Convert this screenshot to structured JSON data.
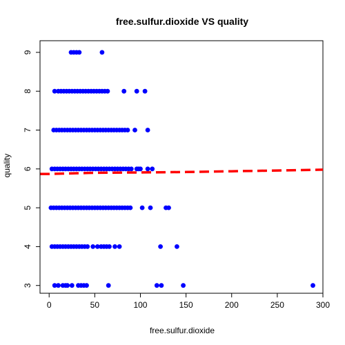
{
  "chart_data": {
    "type": "scatter",
    "title": "free.sulfur.dioxide VS quality",
    "xlabel": "free.sulfur.dioxide",
    "ylabel": "quality",
    "xlim": [
      -10,
      300
    ],
    "ylim": [
      2.8,
      9.3
    ],
    "x_ticks": [
      0,
      50,
      100,
      150,
      200,
      250,
      300
    ],
    "y_ticks": [
      3,
      4,
      5,
      6,
      7,
      8,
      9
    ],
    "point_color": "#0000ff",
    "trend_color": "#ff0000",
    "grid": false,
    "series": [
      {
        "points": [
          [
            24,
            9
          ],
          [
            27,
            9
          ],
          [
            30,
            9
          ],
          [
            33,
            9
          ],
          [
            58,
            9
          ],
          [
            6,
            8
          ],
          [
            10,
            8
          ],
          [
            13,
            8
          ],
          [
            16,
            8
          ],
          [
            19,
            8
          ],
          [
            22,
            8
          ],
          [
            25,
            8
          ],
          [
            28,
            8
          ],
          [
            31,
            8
          ],
          [
            34,
            8
          ],
          [
            37,
            8
          ],
          [
            40,
            8
          ],
          [
            43,
            8
          ],
          [
            46,
            8
          ],
          [
            49,
            8
          ],
          [
            52,
            8
          ],
          [
            55,
            8
          ],
          [
            58,
            8
          ],
          [
            61,
            8
          ],
          [
            64,
            8
          ],
          [
            82,
            8
          ],
          [
            96,
            8
          ],
          [
            105,
            8
          ],
          [
            5,
            7
          ],
          [
            8,
            7
          ],
          [
            11,
            7
          ],
          [
            14,
            7
          ],
          [
            17,
            7
          ],
          [
            20,
            7
          ],
          [
            23,
            7
          ],
          [
            26,
            7
          ],
          [
            29,
            7
          ],
          [
            32,
            7
          ],
          [
            35,
            7
          ],
          [
            38,
            7
          ],
          [
            41,
            7
          ],
          [
            44,
            7
          ],
          [
            47,
            7
          ],
          [
            50,
            7
          ],
          [
            53,
            7
          ],
          [
            56,
            7
          ],
          [
            59,
            7
          ],
          [
            62,
            7
          ],
          [
            65,
            7
          ],
          [
            68,
            7
          ],
          [
            71,
            7
          ],
          [
            74,
            7
          ],
          [
            77,
            7
          ],
          [
            80,
            7
          ],
          [
            83,
            7
          ],
          [
            86,
            7
          ],
          [
            94,
            7
          ],
          [
            108,
            7
          ],
          [
            3,
            6
          ],
          [
            6,
            6
          ],
          [
            9,
            6
          ],
          [
            12,
            6
          ],
          [
            15,
            6
          ],
          [
            18,
            6
          ],
          [
            21,
            6
          ],
          [
            24,
            6
          ],
          [
            27,
            6
          ],
          [
            30,
            6
          ],
          [
            33,
            6
          ],
          [
            36,
            6
          ],
          [
            39,
            6
          ],
          [
            42,
            6
          ],
          [
            45,
            6
          ],
          [
            48,
            6
          ],
          [
            51,
            6
          ],
          [
            54,
            6
          ],
          [
            57,
            6
          ],
          [
            60,
            6
          ],
          [
            63,
            6
          ],
          [
            66,
            6
          ],
          [
            69,
            6
          ],
          [
            72,
            6
          ],
          [
            75,
            6
          ],
          [
            78,
            6
          ],
          [
            81,
            6
          ],
          [
            84,
            6
          ],
          [
            87,
            6
          ],
          [
            90,
            6
          ],
          [
            96,
            6
          ],
          [
            98,
            6
          ],
          [
            100,
            6
          ],
          [
            108,
            6
          ],
          [
            113,
            6
          ],
          [
            2,
            5
          ],
          [
            5,
            5
          ],
          [
            8,
            5
          ],
          [
            11,
            5
          ],
          [
            14,
            5
          ],
          [
            17,
            5
          ],
          [
            20,
            5
          ],
          [
            23,
            5
          ],
          [
            26,
            5
          ],
          [
            29,
            5
          ],
          [
            32,
            5
          ],
          [
            35,
            5
          ],
          [
            38,
            5
          ],
          [
            41,
            5
          ],
          [
            44,
            5
          ],
          [
            47,
            5
          ],
          [
            50,
            5
          ],
          [
            53,
            5
          ],
          [
            56,
            5
          ],
          [
            59,
            5
          ],
          [
            62,
            5
          ],
          [
            65,
            5
          ],
          [
            68,
            5
          ],
          [
            71,
            5
          ],
          [
            74,
            5
          ],
          [
            77,
            5
          ],
          [
            80,
            5
          ],
          [
            83,
            5
          ],
          [
            86,
            5
          ],
          [
            89,
            5
          ],
          [
            102,
            5
          ],
          [
            111,
            5
          ],
          [
            128,
            5
          ],
          [
            131,
            5
          ],
          [
            3,
            4
          ],
          [
            6,
            4
          ],
          [
            9,
            4
          ],
          [
            12,
            4
          ],
          [
            15,
            4
          ],
          [
            18,
            4
          ],
          [
            21,
            4
          ],
          [
            24,
            4
          ],
          [
            27,
            4
          ],
          [
            30,
            4
          ],
          [
            33,
            4
          ],
          [
            36,
            4
          ],
          [
            39,
            4
          ],
          [
            42,
            4
          ],
          [
            48,
            4
          ],
          [
            53,
            4
          ],
          [
            57,
            4
          ],
          [
            60,
            4
          ],
          [
            63,
            4
          ],
          [
            66,
            4
          ],
          [
            72,
            4
          ],
          [
            77,
            4
          ],
          [
            122,
            4
          ],
          [
            140,
            4
          ],
          [
            6,
            3
          ],
          [
            10,
            3
          ],
          [
            15,
            3
          ],
          [
            18,
            3
          ],
          [
            20,
            3
          ],
          [
            25,
            3
          ],
          [
            32,
            3
          ],
          [
            35,
            3
          ],
          [
            38,
            3
          ],
          [
            41,
            3
          ],
          [
            65,
            3
          ],
          [
            118,
            3
          ],
          [
            123,
            3
          ],
          [
            147,
            3
          ],
          [
            289,
            3
          ]
        ]
      }
    ],
    "trend_line": {
      "style": "dashed",
      "points": [
        [
          -10,
          5.87
        ],
        [
          0,
          5.87
        ],
        [
          50,
          5.9
        ],
        [
          100,
          5.91
        ],
        [
          150,
          5.92
        ],
        [
          200,
          5.94
        ],
        [
          250,
          5.96
        ],
        [
          300,
          5.98
        ]
      ]
    }
  }
}
